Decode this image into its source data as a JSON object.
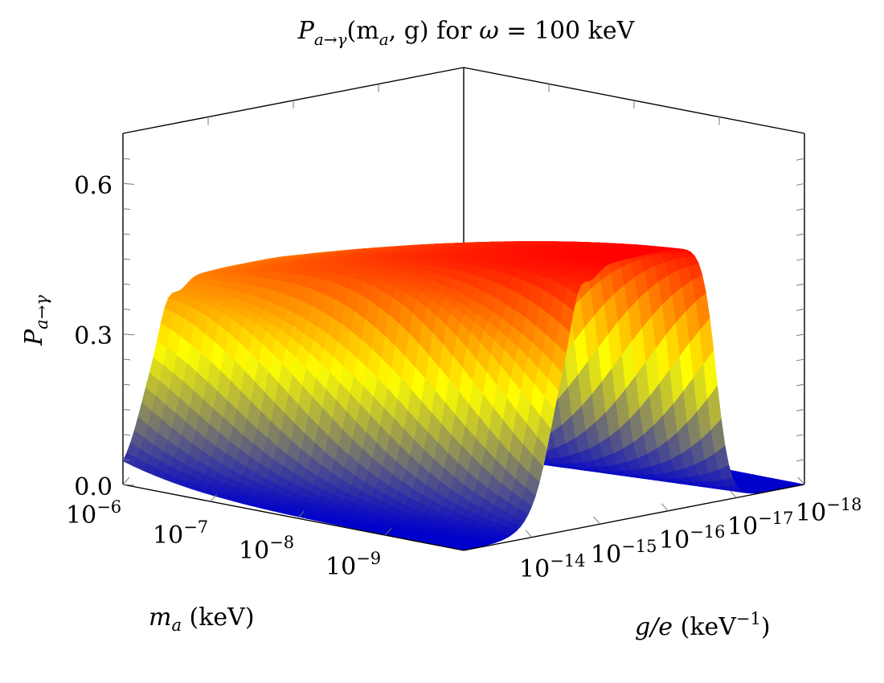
{
  "chart_data": {
    "type": "surface",
    "title": {
      "func": "P",
      "func_sub": "a→γ",
      "args": "(m",
      "args_sub": "a",
      "args_end": ", g)",
      "mid": " for ",
      "omega": "ω",
      "value": " = 100 keV"
    },
    "xlabel": {
      "var": "m",
      "sub": "a",
      "unit": " (keV)"
    },
    "ylabel": {
      "var": "g/e",
      "unit": " (keV",
      "unit_sup": "−1",
      "unit_end": ")"
    },
    "zlabel": {
      "var": "P",
      "sub": "a→γ"
    },
    "x_axis": {
      "quantity": "m_a",
      "scale": "log",
      "ticks": [
        {
          "base": "10",
          "exp": "−6"
        },
        {
          "base": "10",
          "exp": "−7"
        },
        {
          "base": "10",
          "exp": "−8"
        },
        {
          "base": "10",
          "exp": "−9"
        }
      ]
    },
    "y_axis": {
      "quantity": "g/e",
      "scale": "log",
      "ticks": [
        {
          "base": "10",
          "exp": "−14"
        },
        {
          "base": "10",
          "exp": "−15"
        },
        {
          "base": "10",
          "exp": "−16"
        },
        {
          "base": "10",
          "exp": "−17"
        },
        {
          "base": "10",
          "exp": "−18"
        }
      ]
    },
    "z_axis": {
      "quantity": "P",
      "ticks": [
        "0.0",
        "0.3",
        "0.6"
      ],
      "zlim": [
        0,
        0.7
      ]
    },
    "surface": {
      "plateau_max": 0.52,
      "plateau_at_largest_m": 0.38,
      "colormap": [
        "#0000cc",
        "#ffff00",
        "#ff0000"
      ]
    }
  }
}
